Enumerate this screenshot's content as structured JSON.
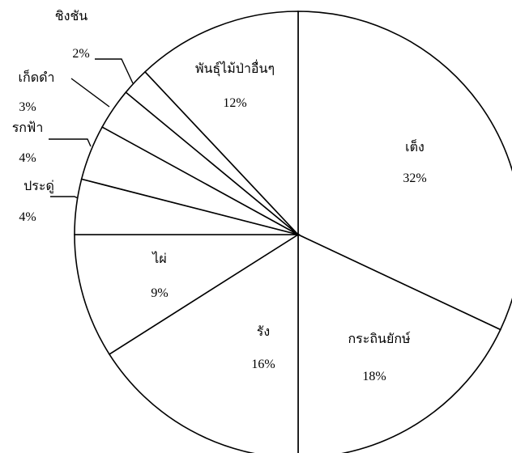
{
  "chart_data": {
    "type": "pie",
    "title": "",
    "categories": [
      "เต็ง",
      "กระถินยักษ์",
      "รัง",
      "ไผ่",
      "ประดู่",
      "รกฟ้า",
      "เก็ดดำ",
      "ชิงชัน",
      "พันธุ์ไม้ป่าอื่นๆ"
    ],
    "values": [
      32,
      18,
      16,
      9,
      4,
      4,
      3,
      2,
      12
    ],
    "value_labels": [
      "32%",
      "18%",
      "16%",
      "9%",
      "4%",
      "4%",
      "3%",
      "2%",
      "12%"
    ],
    "start": "12 o'clock",
    "direction": "clockwise",
    "colors": {
      "fill": "#ffffff",
      "stroke": "#000000"
    },
    "legend": "none"
  }
}
